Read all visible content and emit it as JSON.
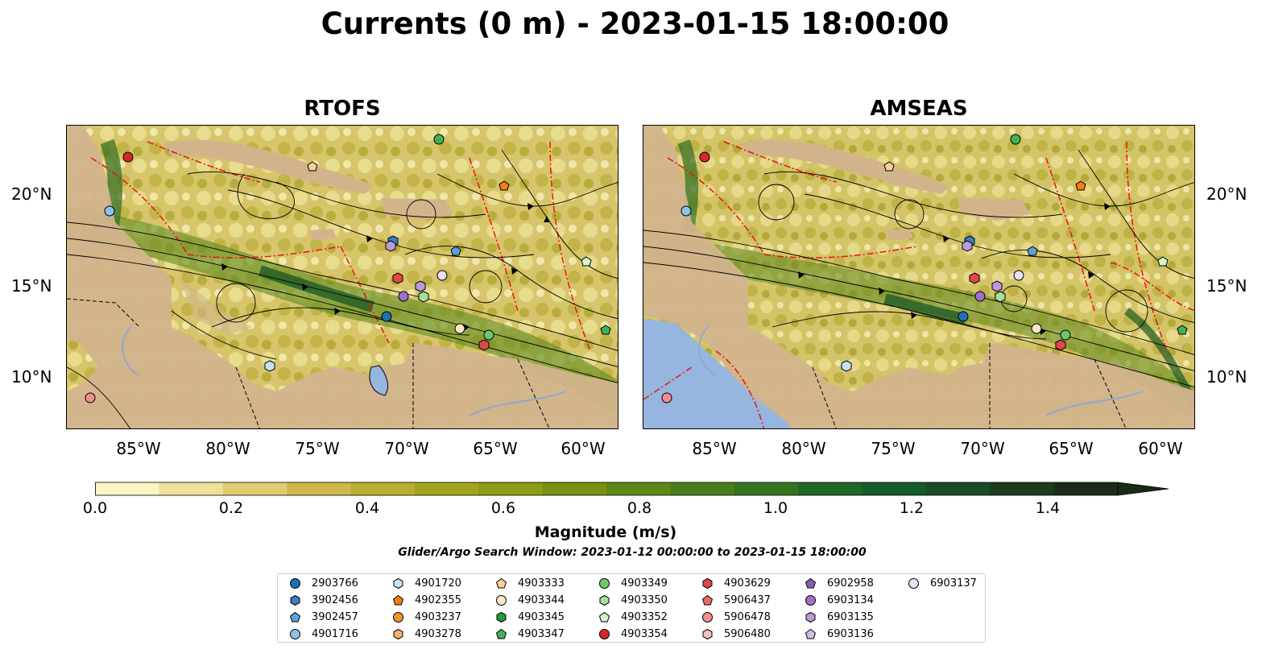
{
  "title": "Currents (0 m) - 2023-01-15 18:00:00",
  "panels": [
    {
      "name": "RTOFS"
    },
    {
      "name": "AMSEAS"
    }
  ],
  "lat_labels": [
    "20°N",
    "15°N",
    "10°N"
  ],
  "lon_labels": [
    "85°W",
    "80°W",
    "75°W",
    "70°W",
    "65°W",
    "60°W"
  ],
  "colorbar": {
    "label": "Magnitude (m/s)",
    "ticks": [
      "0.0",
      "0.2",
      "0.4",
      "0.6",
      "0.8",
      "1.0",
      "1.2",
      "1.4"
    ],
    "range": [
      0.0,
      1.5
    ],
    "colors": [
      "#fbf5c4",
      "#efe09a",
      "#e1cb70",
      "#cfb84a",
      "#b9ad2f",
      "#a3a41d",
      "#8c9c14",
      "#769210",
      "#5e8715",
      "#497d1c",
      "#347320",
      "#1e6726",
      "#145a2a",
      "#1a4a27",
      "#1c3a20",
      "#1b2a18"
    ]
  },
  "search_window": "Glider/Argo Search Window: 2023-01-12 00:00:00 to 2023-01-15 18:00:00",
  "legend": [
    {
      "id": "2903766",
      "marker": "circle",
      "color": "#1f6fb4"
    },
    {
      "id": "3902456",
      "marker": "hexagon",
      "color": "#3a7fc1"
    },
    {
      "id": "3902457",
      "marker": "pentagon",
      "color": "#5fa0da"
    },
    {
      "id": "4901716",
      "marker": "circle",
      "color": "#8ec0ea"
    },
    {
      "id": "4901720",
      "marker": "hexagon",
      "color": "#c6e2f7"
    },
    {
      "id": "4902355",
      "marker": "pentagon",
      "color": "#f07f14"
    },
    {
      "id": "4903237",
      "marker": "circle",
      "color": "#f3922f"
    },
    {
      "id": "4903278",
      "marker": "hexagon",
      "color": "#f9b26c"
    },
    {
      "id": "4903333",
      "marker": "pentagon",
      "color": "#fbcb9e"
    },
    {
      "id": "4903344",
      "marker": "circle",
      "color": "#fde4cc"
    },
    {
      "id": "4903345",
      "marker": "hexagon",
      "color": "#259c3b"
    },
    {
      "id": "4903347",
      "marker": "pentagon",
      "color": "#45b156"
    },
    {
      "id": "4903349",
      "marker": "circle",
      "color": "#6fc76d"
    },
    {
      "id": "4903350",
      "marker": "hexagon",
      "color": "#a6e09a"
    },
    {
      "id": "4903352",
      "marker": "pentagon",
      "color": "#d6f5cb"
    },
    {
      "id": "4903354",
      "marker": "circle",
      "color": "#d62728"
    },
    {
      "id": "4903629",
      "marker": "hexagon",
      "color": "#e0474b"
    },
    {
      "id": "5906437",
      "marker": "pentagon",
      "color": "#ec6a6c"
    },
    {
      "id": "5906478",
      "marker": "circle",
      "color": "#f28e8e"
    },
    {
      "id": "5906480",
      "marker": "hexagon",
      "color": "#f8bfbd"
    },
    {
      "id": "6902958",
      "marker": "pentagon",
      "color": "#8a5db7"
    },
    {
      "id": "6903134",
      "marker": "circle",
      "color": "#9e72c8"
    },
    {
      "id": "6903135",
      "marker": "hexagon",
      "color": "#bb9ad8"
    },
    {
      "id": "6903136",
      "marker": "pentagon",
      "color": "#d3bde6"
    },
    {
      "id": "6903137",
      "marker": "circle",
      "color": "#ecdff6"
    }
  ],
  "map_colors": {
    "land": "#d2b48c",
    "ocean_outside": "#96b5df",
    "eez": "#ff0000",
    "streamline": "#000000"
  }
}
